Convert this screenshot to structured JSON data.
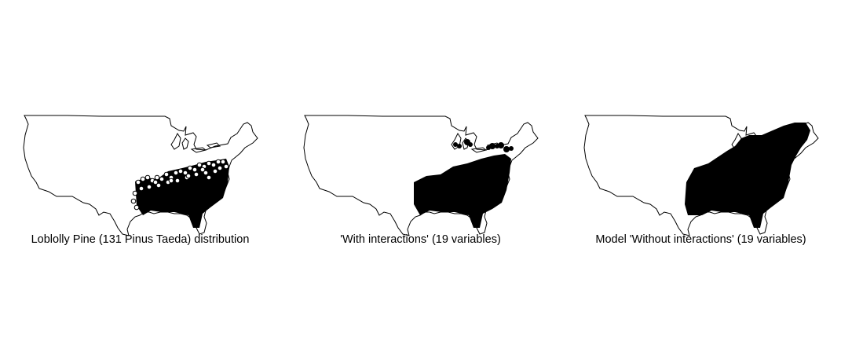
{
  "panels": [
    {
      "caption": "Loblolly Pine (131 Pinus Taeda) distribution",
      "style": "rings"
    },
    {
      "caption": "'With interactions' (19 variables)",
      "style": "solid"
    },
    {
      "caption": "Model 'Without interactions' (19 variables)",
      "style": "solid"
    }
  ],
  "colors": {
    "outline": "#000000",
    "points": "#000000",
    "background": "#ffffff"
  }
}
